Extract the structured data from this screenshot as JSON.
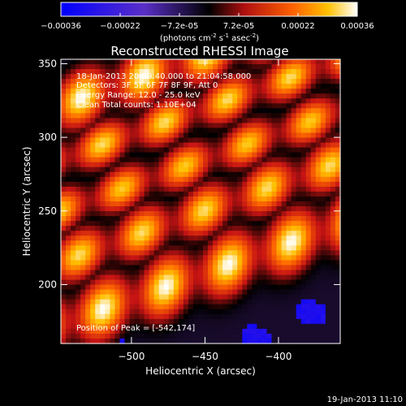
{
  "colorbar": {
    "ticks": [
      "-0.00036",
      "-0.00022",
      "-7.2e-05",
      "7.2e-05",
      "0.00022",
      "0.00036"
    ],
    "units_main": "(photons cm",
    "units_sup1": "-2",
    "units_mid1": " s",
    "units_sup2": "-1",
    "units_mid2": " asec",
    "units_sup3": "-2",
    "units_end": ")"
  },
  "annotations": {
    "time_range": "18-Jan-2013 20:59:40.000 to 21:04:58.000",
    "detectors": "Detectors: 3F 5F 6F 7F 8F 9F, Att 0",
    "energy": "Energy Range: 12.0 - 25.0 keV",
    "clean": "Clean    Total counts: 1.10E+04",
    "peak": "Position of Peak = [-542,174]"
  },
  "footer_date": "19-Jan-2013 11:10",
  "chart_data": {
    "type": "heatmap",
    "title": "Reconstructed RHESSI Image",
    "xlabel": "Heliocentric X (arcsec)",
    "ylabel": "Heliocentric Y (arcsec)",
    "xlim": [
      -548,
      -358
    ],
    "ylim": [
      160,
      353
    ],
    "xticks": [
      -500,
      -450,
      -400
    ],
    "yticks": [
      200,
      250,
      300,
      350
    ],
    "xtick_labels": [
      "−500",
      "−450",
      "−400"
    ],
    "ytick_labels": [
      "200",
      "250",
      "300",
      "350"
    ],
    "colorbar_range": [
      -0.00036,
      0.00036
    ],
    "colormap": [
      "#0000ff",
      "#6a2fc0",
      "#000000",
      "#c81414",
      "#ff6a00",
      "#ffc000",
      "#ffffff"
    ],
    "peak_position": [
      -542,
      174
    ]
  }
}
